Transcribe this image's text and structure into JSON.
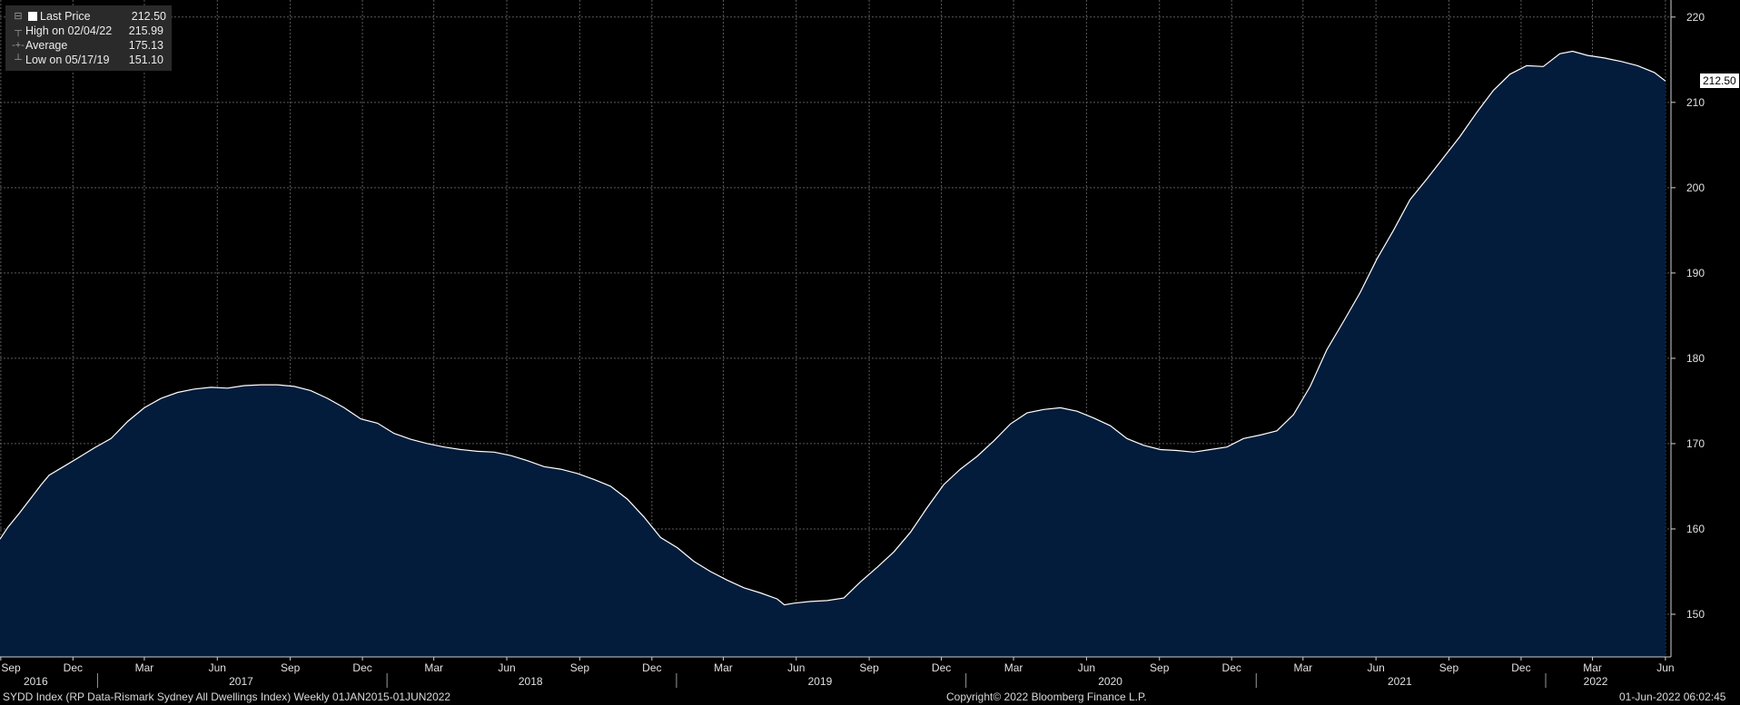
{
  "legend": [
    {
      "key": "square",
      "label": "Last Price",
      "value": "212.50"
    },
    {
      "key": "high",
      "label": "High on 02/04/22",
      "value": "215.99"
    },
    {
      "key": "average",
      "label": "Average",
      "value": "175.13"
    },
    {
      "key": "low",
      "label": "Low on 05/17/19",
      "value": "151.10"
    }
  ],
  "last_price_tag": "212.50",
  "footer": {
    "left": "SYDD Index (RP Data-Rismark Sydney All Dwellings Index)  Weekly 01JAN2015-01JUN2022",
    "center": "Copyright© 2022 Bloomberg Finance L.P.",
    "right": "01-Jun-2022 06:02:45"
  },
  "colors": {
    "background": "#000000",
    "area_fill": "#041c3b",
    "line": "#ffffff",
    "grid": "#5a5a5a"
  },
  "chart_data": {
    "type": "area",
    "title": "",
    "xlabel": "",
    "ylabel": "",
    "ylim": [
      145,
      222
    ],
    "xlim": [
      "2016-08-31",
      "2022-06-08"
    ],
    "y_ticks": [
      150,
      160,
      170,
      180,
      190,
      200,
      210,
      220
    ],
    "month_ticks": [
      {
        "label": "Sep",
        "date": "2016-09-01"
      },
      {
        "label": "Dec",
        "date": "2016-12-01"
      },
      {
        "label": "Mar",
        "date": "2017-03-01"
      },
      {
        "label": "Jun",
        "date": "2017-06-01"
      },
      {
        "label": "Sep",
        "date": "2017-09-01"
      },
      {
        "label": "Dec",
        "date": "2017-12-01"
      },
      {
        "label": "Mar",
        "date": "2018-03-01"
      },
      {
        "label": "Jun",
        "date": "2018-06-01"
      },
      {
        "label": "Sep",
        "date": "2018-09-01"
      },
      {
        "label": "Dec",
        "date": "2018-12-01"
      },
      {
        "label": "Mar",
        "date": "2019-03-01"
      },
      {
        "label": "Jun",
        "date": "2019-06-01"
      },
      {
        "label": "Sep",
        "date": "2019-09-01"
      },
      {
        "label": "Dec",
        "date": "2019-12-01"
      },
      {
        "label": "Mar",
        "date": "2020-03-01"
      },
      {
        "label": "Jun",
        "date": "2020-06-01"
      },
      {
        "label": "Sep",
        "date": "2020-09-01"
      },
      {
        "label": "Dec",
        "date": "2020-12-01"
      },
      {
        "label": "Mar",
        "date": "2021-03-01"
      },
      {
        "label": "Jun",
        "date": "2021-06-01"
      },
      {
        "label": "Sep",
        "date": "2021-09-01"
      },
      {
        "label": "Dec",
        "date": "2021-12-01"
      },
      {
        "label": "Mar",
        "date": "2022-03-01"
      },
      {
        "label": "Jun",
        "date": "2022-06-01"
      }
    ],
    "year_labels": [
      {
        "label": "2016",
        "date": "2016-10-15"
      },
      {
        "label": "2017",
        "date": "2017-07-01"
      },
      {
        "label": "2018",
        "date": "2018-07-01"
      },
      {
        "label": "2019",
        "date": "2019-07-01"
      },
      {
        "label": "2020",
        "date": "2020-07-01"
      },
      {
        "label": "2021",
        "date": "2021-07-01"
      },
      {
        "label": "2022",
        "date": "2022-03-05"
      }
    ],
    "year_dividers": [
      "2017-01-01",
      "2018-01-01",
      "2019-01-01",
      "2020-01-01",
      "2021-01-01",
      "2022-01-01"
    ],
    "series": [
      {
        "name": "Last Price",
        "x": [
          "2016-08-31",
          "2016-09-10",
          "2016-09-24",
          "2016-10-08",
          "2016-10-22",
          "2016-11-01",
          "2016-11-19",
          "2016-12-07",
          "2016-12-28",
          "2017-01-18",
          "2017-02-08",
          "2017-03-01",
          "2017-03-22",
          "2017-04-12",
          "2017-05-03",
          "2017-05-24",
          "2017-06-14",
          "2017-07-05",
          "2017-07-26",
          "2017-08-16",
          "2017-09-06",
          "2017-09-27",
          "2017-10-18",
          "2017-11-08",
          "2017-11-29",
          "2017-12-20",
          "2018-01-10",
          "2018-01-31",
          "2018-02-21",
          "2018-03-14",
          "2018-04-04",
          "2018-04-25",
          "2018-05-16",
          "2018-06-06",
          "2018-06-27",
          "2018-07-18",
          "2018-08-08",
          "2018-08-29",
          "2018-09-19",
          "2018-10-10",
          "2018-10-31",
          "2018-11-21",
          "2018-12-12",
          "2019-01-02",
          "2019-01-23",
          "2019-02-13",
          "2019-03-06",
          "2019-03-27",
          "2019-04-17",
          "2019-05-08",
          "2019-05-17",
          "2019-05-29",
          "2019-06-19",
          "2019-07-10",
          "2019-07-31",
          "2019-08-21",
          "2019-09-11",
          "2019-10-02",
          "2019-10-23",
          "2019-11-13",
          "2019-12-04",
          "2019-12-25",
          "2020-01-15",
          "2020-02-05",
          "2020-02-26",
          "2020-03-18",
          "2020-04-08",
          "2020-04-29",
          "2020-05-20",
          "2020-06-10",
          "2020-07-01",
          "2020-07-22",
          "2020-08-12",
          "2020-09-02",
          "2020-09-23",
          "2020-10-14",
          "2020-11-04",
          "2020-11-25",
          "2020-12-16",
          "2021-01-06",
          "2021-01-27",
          "2021-02-17",
          "2021-03-10",
          "2021-03-31",
          "2021-04-21",
          "2021-05-12",
          "2021-06-02",
          "2021-06-23",
          "2021-07-14",
          "2021-08-04",
          "2021-08-25",
          "2021-09-15",
          "2021-10-06",
          "2021-10-27",
          "2021-11-17",
          "2021-12-08",
          "2021-12-29",
          "2022-01-19",
          "2022-02-04",
          "2022-02-23",
          "2022-03-16",
          "2022-04-06",
          "2022-04-27",
          "2022-05-18",
          "2022-06-01"
        ],
        "y": [
          158.8,
          160.2,
          161.8,
          163.5,
          165.2,
          166.3,
          167.3,
          168.3,
          169.5,
          170.6,
          172.6,
          174.2,
          175.3,
          176.0,
          176.4,
          176.6,
          176.5,
          176.8,
          176.9,
          176.9,
          176.7,
          176.2,
          175.3,
          174.2,
          172.9,
          172.4,
          171.2,
          170.5,
          170.0,
          169.6,
          169.3,
          169.1,
          169.0,
          168.6,
          168.0,
          167.3,
          167.0,
          166.5,
          165.8,
          165.0,
          163.5,
          161.4,
          159.0,
          157.8,
          156.2,
          155.0,
          154.0,
          153.1,
          152.5,
          151.8,
          151.1,
          151.3,
          151.5,
          151.6,
          151.9,
          153.8,
          155.5,
          157.3,
          159.6,
          162.5,
          165.2,
          167.0,
          168.5,
          170.3,
          172.3,
          173.6,
          174.0,
          174.2,
          173.8,
          173.0,
          172.1,
          170.6,
          169.8,
          169.3,
          169.2,
          169.0,
          169.3,
          169.6,
          170.6,
          171.0,
          171.5,
          173.4,
          176.7,
          181.0,
          184.3,
          187.7,
          191.6,
          195.0,
          198.6,
          201.0,
          203.5,
          206.0,
          208.8,
          211.4,
          213.3,
          214.3,
          214.2,
          215.7,
          215.99,
          215.5,
          215.2,
          214.8,
          214.3,
          213.5,
          212.5
        ]
      }
    ]
  }
}
